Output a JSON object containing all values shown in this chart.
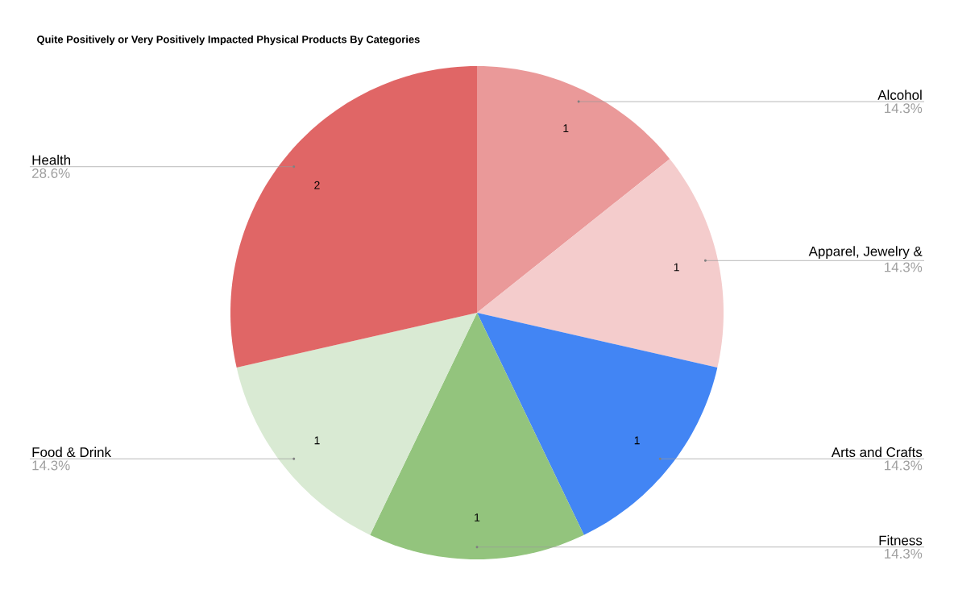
{
  "chart_data": {
    "type": "pie",
    "title": "Quite Positively or Very Positively Impacted Physical Products By Categories",
    "categories": [
      "Alcohol",
      "Apparel, Jewelry &",
      "Arts and Crafts",
      "Fitness",
      "Food & Drink",
      "Health"
    ],
    "values": [
      1,
      1,
      1,
      1,
      1,
      2
    ],
    "colors": [
      "#ea9999",
      "#f4cccc",
      "#4285f4",
      "#93c47d",
      "#d9ead3",
      "#e06666"
    ],
    "value_labels": [
      "1",
      "1",
      "1",
      "1",
      "1",
      "2"
    ],
    "annotations": [
      "14.3%",
      "14.3%",
      "14.3%",
      "14.3%",
      "14.3%",
      "28.6%"
    ]
  }
}
